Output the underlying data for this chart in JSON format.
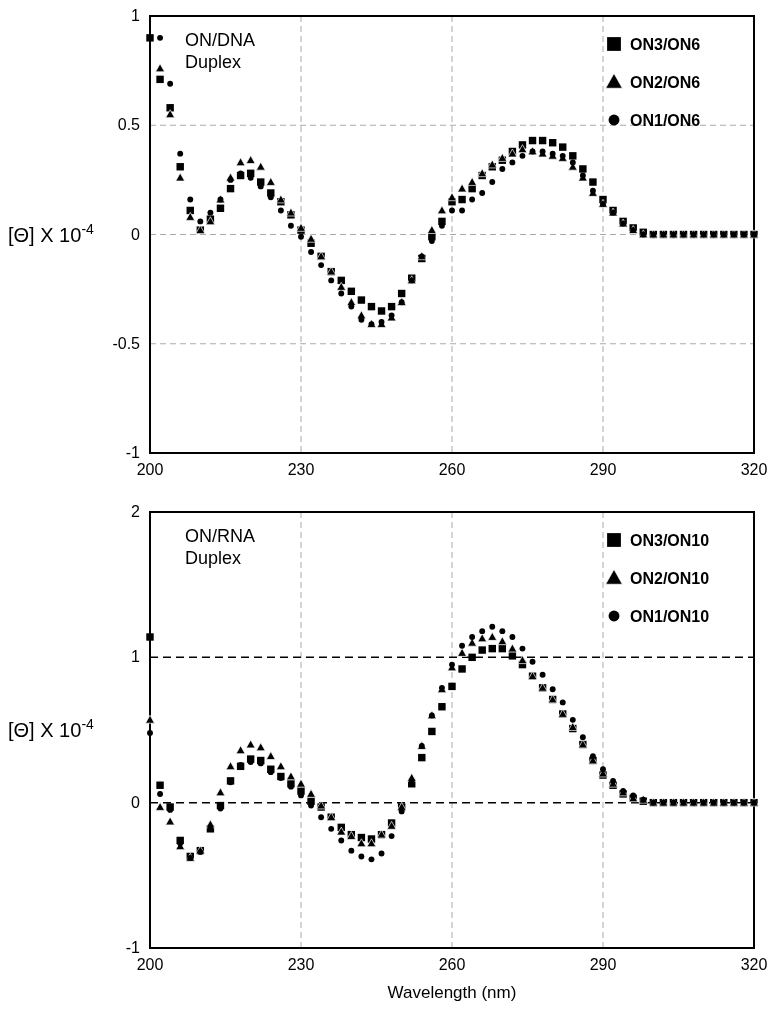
{
  "chart_data": [
    {
      "type": "scatter",
      "ylabel": "[Θ] X 10$^{-4}$",
      "annotations": [
        "ON/DNA\nDuplex"
      ],
      "x": [
        200,
        202,
        204,
        206,
        208,
        210,
        212,
        214,
        216,
        218,
        220,
        222,
        224,
        226,
        228,
        230,
        232,
        234,
        236,
        238,
        240,
        242,
        244,
        246,
        248,
        250,
        252,
        254,
        256,
        258,
        260,
        262,
        264,
        266,
        268,
        270,
        272,
        274,
        276,
        278,
        280,
        282,
        284,
        286,
        288,
        290,
        292,
        294,
        296,
        298,
        300,
        302,
        304,
        306,
        308,
        310,
        312,
        314,
        316,
        318,
        320
      ],
      "xlim": [
        200,
        320
      ],
      "xticks": [
        200,
        230,
        260,
        290,
        320
      ],
      "ylim": [
        -1,
        1
      ],
      "yticks": [
        -1,
        -0.5,
        0,
        0.5,
        1
      ],
      "grid": true,
      "legend": "top right",
      "series": [
        {
          "name": "ON3/ON6",
          "color": "#000000",
          "marker": "square",
          "values": [
            0.9,
            0.71,
            0.58,
            0.31,
            0.11,
            0.02,
            0.07,
            0.12,
            0.21,
            0.27,
            0.28,
            0.24,
            0.19,
            0.15,
            0.09,
            0.02,
            -0.04,
            -0.1,
            -0.17,
            -0.21,
            -0.26,
            -0.3,
            -0.33,
            -0.35,
            -0.33,
            -0.27,
            -0.2,
            -0.11,
            -0.01,
            0.06,
            0.15,
            0.16,
            0.21,
            0.27,
            0.31,
            0.34,
            0.38,
            0.41,
            0.43,
            0.43,
            0.42,
            0.4,
            0.36,
            0.3,
            0.24,
            0.16,
            0.11,
            0.06,
            0.03,
            0.01,
            0,
            0,
            0,
            0,
            0,
            0,
            0,
            0,
            0,
            0,
            0
          ]
        },
        {
          "name": "ON2/ON6",
          "color": "#000000",
          "marker": "triangle",
          "values": [
            null,
            0.76,
            0.55,
            0.26,
            0.08,
            0.02,
            0.06,
            0.16,
            0.26,
            0.33,
            0.34,
            0.31,
            0.24,
            0.16,
            0.1,
            0.03,
            -0.02,
            -0.1,
            -0.17,
            -0.24,
            -0.31,
            -0.37,
            -0.41,
            -0.41,
            -0.38,
            -0.31,
            -0.21,
            -0.1,
            0.02,
            0.11,
            0.17,
            0.21,
            0.24,
            0.28,
            0.32,
            0.35,
            0.37,
            0.39,
            0.38,
            0.37,
            0.36,
            0.35,
            0.31,
            0.26,
            0.19,
            0.14,
            0.1,
            0.05,
            0.02,
            0,
            0,
            0,
            0,
            0,
            0,
            0,
            0,
            0,
            0,
            0,
            0
          ]
        },
        {
          "name": "ON1/ON6",
          "color": "#000000",
          "marker": "circle",
          "values": [
            null,
            0.9,
            0.69,
            0.37,
            0.16,
            0.06,
            0.1,
            0.16,
            0.25,
            0.28,
            0.26,
            0.22,
            0.17,
            0.11,
            0.04,
            -0.01,
            -0.08,
            -0.14,
            -0.21,
            -0.27,
            -0.33,
            -0.39,
            -0.41,
            -0.4,
            -0.37,
            -0.31,
            -0.21,
            -0.1,
            -0.03,
            0.04,
            0.11,
            0.11,
            0.16,
            0.19,
            0.24,
            0.3,
            0.33,
            0.36,
            0.38,
            0.38,
            0.37,
            0.36,
            0.33,
            0.27,
            0.2,
            0.14,
            0.1,
            0.05,
            0.02,
            0,
            0,
            0,
            0,
            0,
            0,
            0,
            0,
            0,
            0,
            0,
            0
          ]
        }
      ]
    },
    {
      "type": "scatter",
      "xlabel": "Wavelength (nm)",
      "ylabel": "[Θ] X 10$^{-4}$",
      "annotations": [
        "ON/RNA\nDuplex"
      ],
      "x": [
        200,
        202,
        204,
        206,
        208,
        210,
        212,
        214,
        216,
        218,
        220,
        222,
        224,
        226,
        228,
        230,
        232,
        234,
        236,
        238,
        240,
        242,
        244,
        246,
        248,
        250,
        252,
        254,
        256,
        258,
        260,
        262,
        264,
        266,
        268,
        270,
        272,
        274,
        276,
        278,
        280,
        282,
        284,
        286,
        288,
        290,
        292,
        294,
        296,
        298,
        300,
        302,
        304,
        306,
        308,
        310,
        312,
        314,
        316,
        318,
        320
      ],
      "xlim": [
        200,
        320
      ],
      "xticks": [
        200,
        230,
        260,
        290,
        320
      ],
      "ylim": [
        -1,
        2
      ],
      "yticks": [
        -1,
        0,
        1,
        2
      ],
      "grid": "x",
      "legend": "top right",
      "ref_lines": [
        {
          "axis": "y",
          "value": 0,
          "color": "#000000",
          "line_style": "dashed"
        },
        {
          "axis": "y",
          "value": 1,
          "color": "#000000",
          "line_style": "dashed"
        }
      ],
      "series": [
        {
          "name": "ON3/ON10",
          "color": "#000000",
          "marker": "square",
          "values": [
            1.14,
            0.12,
            -0.03,
            -0.26,
            -0.37,
            -0.33,
            -0.18,
            -0.02,
            0.15,
            0.25,
            0.3,
            0.29,
            0.23,
            0.18,
            0.13,
            0.08,
            0.01,
            -0.03,
            -0.1,
            -0.17,
            -0.22,
            -0.24,
            -0.25,
            -0.22,
            -0.14,
            -0.03,
            0.13,
            0.31,
            0.49,
            0.66,
            0.8,
            0.92,
            1,
            1.05,
            1.06,
            1.06,
            1.01,
            0.95,
            0.87,
            0.79,
            0.71,
            0.61,
            0.51,
            0.4,
            0.29,
            0.19,
            0.12,
            0.06,
            0.03,
            0.01,
            0,
            0,
            0,
            0,
            0,
            0,
            0,
            0,
            0,
            0,
            0
          ]
        },
        {
          "name": "ON2/ON10",
          "color": "#000000",
          "marker": "triangle",
          "values": [
            0.57,
            -0.03,
            -0.13,
            -0.3,
            -0.38,
            -0.33,
            -0.15,
            0.07,
            0.25,
            0.36,
            0.4,
            0.38,
            0.32,
            0.25,
            0.18,
            0.13,
            0.06,
            -0.02,
            -0.1,
            -0.2,
            -0.23,
            -0.28,
            -0.28,
            -0.22,
            -0.16,
            -0.03,
            0.17,
            0.39,
            0.6,
            0.78,
            0.93,
            1.03,
            1.1,
            1.13,
            1.14,
            1.11,
            1.06,
            0.98,
            0.87,
            0.79,
            0.71,
            0.61,
            0.52,
            0.4,
            0.29,
            0.2,
            0.13,
            0.07,
            0.03,
            0.02,
            0,
            0,
            0,
            0,
            0,
            0,
            0,
            0,
            0,
            0,
            0
          ]
        },
        {
          "name": "ON1/ON10",
          "color": "#000000",
          "marker": "circle",
          "values": [
            0.48,
            0.06,
            -0.05,
            -0.28,
            -0.38,
            -0.34,
            -0.18,
            -0.04,
            0.14,
            0.26,
            0.28,
            0.27,
            0.21,
            0.17,
            0.11,
            0.05,
            -0.02,
            -0.1,
            -0.18,
            -0.26,
            -0.33,
            -0.37,
            -0.39,
            -0.35,
            -0.23,
            -0.06,
            0.15,
            0.39,
            0.6,
            0.79,
            0.95,
            1.08,
            1.14,
            1.18,
            1.21,
            1.18,
            1.14,
            1.06,
            0.97,
            0.88,
            0.78,
            0.69,
            0.57,
            0.45,
            0.32,
            0.23,
            0.15,
            0.08,
            0.05,
            0.02,
            0,
            0,
            0,
            0,
            0,
            0,
            0,
            0,
            0,
            0,
            0
          ]
        }
      ]
    }
  ]
}
